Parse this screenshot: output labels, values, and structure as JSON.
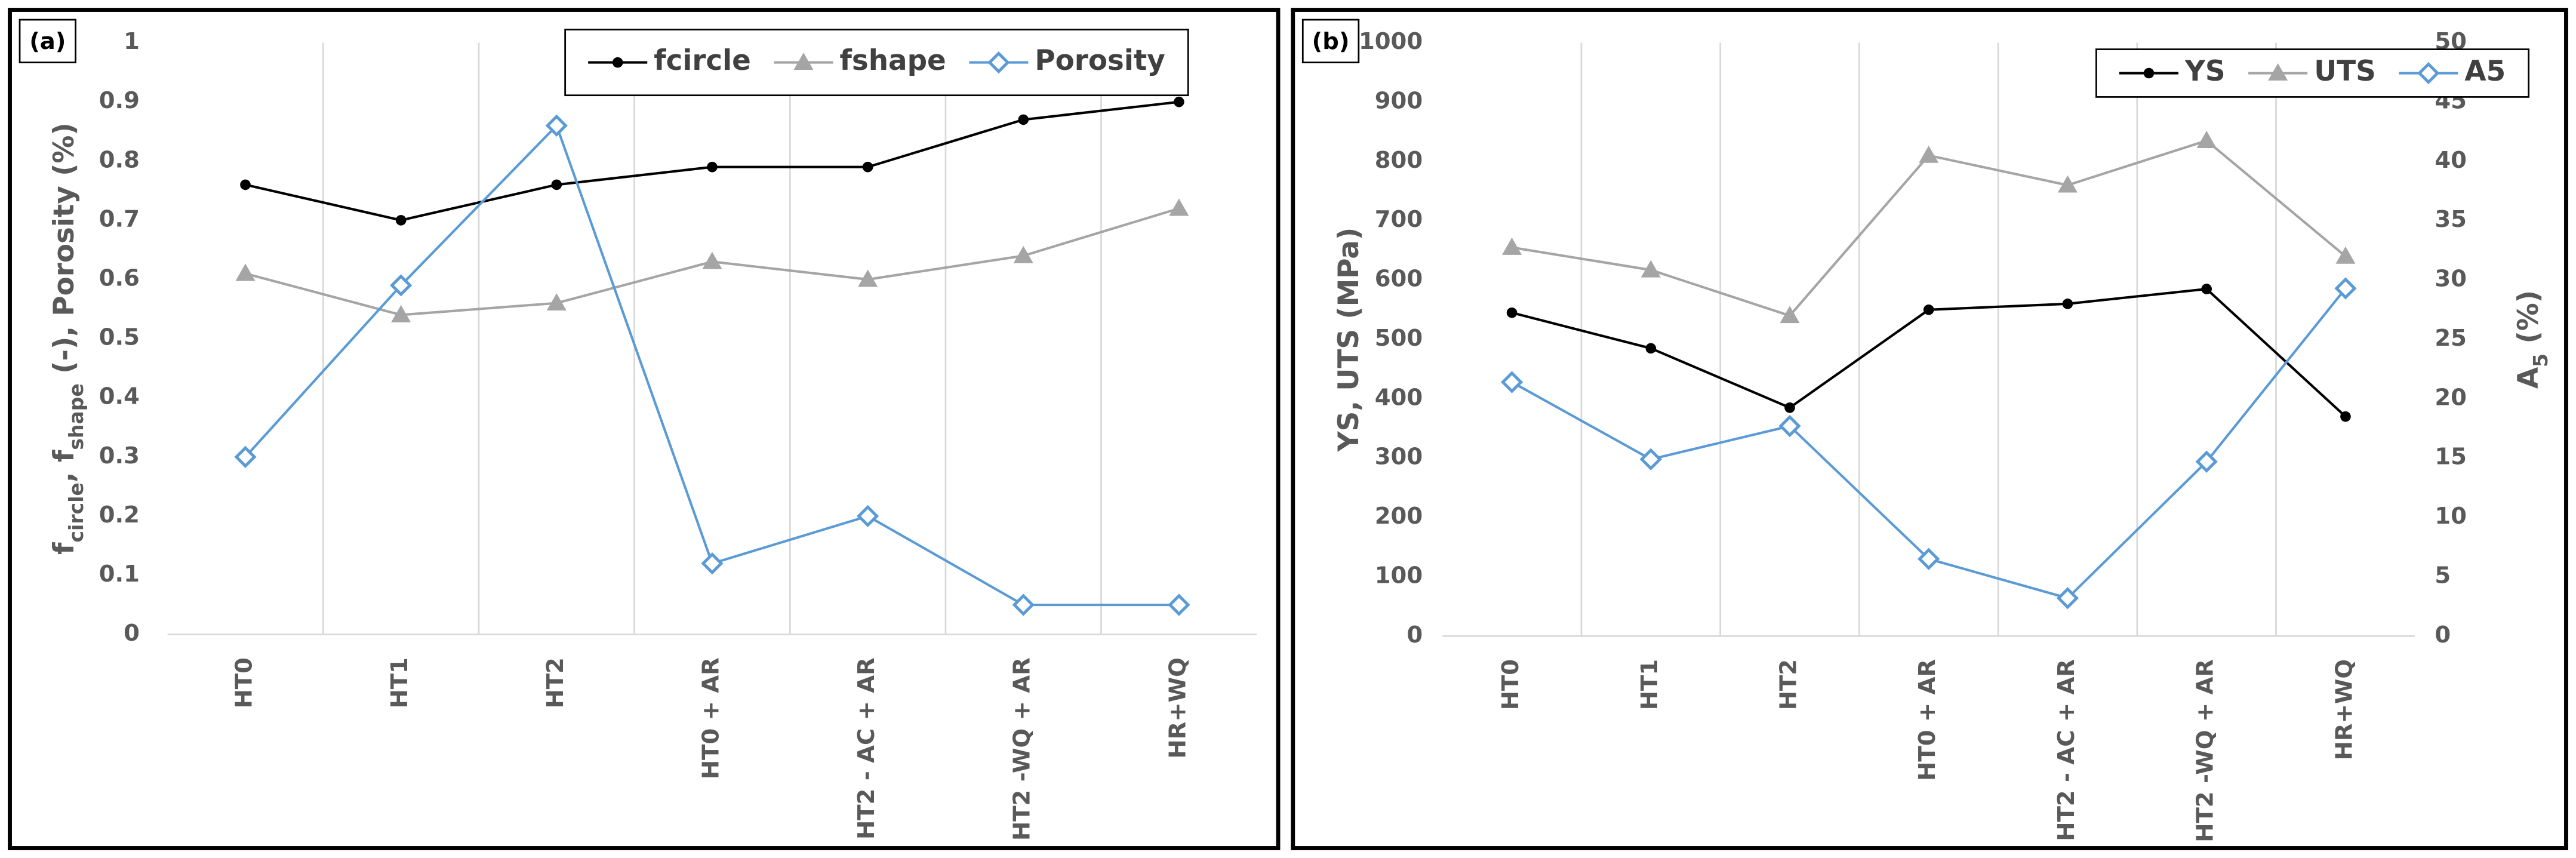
{
  "chart_data": [
    {
      "type": "line",
      "panel_label": "(a)",
      "y_label_parts": [
        "f",
        "circle",
        ", f",
        "shape",
        " (-), Porosity (%)"
      ],
      "categories": [
        "HT0",
        "HT1",
        "HT2",
        "HT0 + AR",
        "HT2 - AC + AR",
        "HT2 -WQ + AR",
        "HR+WQ"
      ],
      "series": [
        {
          "name": "fcircle",
          "color": "#000000",
          "marker": "circle",
          "values": [
            0.76,
            0.7,
            0.76,
            0.79,
            0.79,
            0.87,
            0.9
          ]
        },
        {
          "name": "fshape",
          "color": "#a5a5a5",
          "marker": "triangle",
          "values": [
            0.61,
            0.54,
            0.56,
            0.63,
            0.6,
            0.64,
            0.72
          ]
        },
        {
          "name": "Porosity",
          "color": "#5b9bd5",
          "marker": "diamond",
          "values": [
            0.3,
            0.59,
            0.86,
            0.12,
            0.2,
            0.05,
            0.05
          ]
        }
      ],
      "ylim": [
        0,
        1
      ],
      "yticks": [
        0,
        0.1,
        0.2,
        0.3,
        0.4,
        0.5,
        0.6,
        0.7,
        0.8,
        0.9,
        1
      ],
      "grid": "vertical",
      "legend": "upper right"
    },
    {
      "type": "line",
      "panel_label": "(b)",
      "y_label_parts": [
        "YS, UTS (MPa)"
      ],
      "y2_label_parts": [
        "A",
        "5",
        " (%)"
      ],
      "categories": [
        "HT0",
        "HT1",
        "HT2",
        "HT0 + AR",
        "HT2 - AC + AR",
        "HT2 -WQ + AR",
        "HR+WQ"
      ],
      "series": [
        {
          "name": "YS",
          "color": "#000000",
          "marker": "circle",
          "values": [
            545,
            485,
            385,
            550,
            560,
            585,
            370
          ]
        },
        {
          "name": "UTS",
          "color": "#a5a5a5",
          "marker": "triangle",
          "values": [
            655,
            617,
            540,
            810,
            760,
            835,
            640
          ]
        },
        {
          "name": "A5",
          "color": "#5b9bd5",
          "marker": "diamond",
          "axis": "y2",
          "values": [
            21.4,
            14.9,
            17.7,
            6.5,
            3.2,
            14.7,
            29.3
          ]
        }
      ],
      "ylim": [
        0,
        1000
      ],
      "yticks": [
        0,
        100,
        200,
        300,
        400,
        500,
        600,
        700,
        800,
        900,
        1000
      ],
      "y2lim": [
        0,
        50
      ],
      "y2ticks": [
        0,
        5,
        10,
        15,
        20,
        25,
        30,
        35,
        40,
        45,
        50
      ],
      "grid": "vertical",
      "legend": "upper right"
    }
  ]
}
